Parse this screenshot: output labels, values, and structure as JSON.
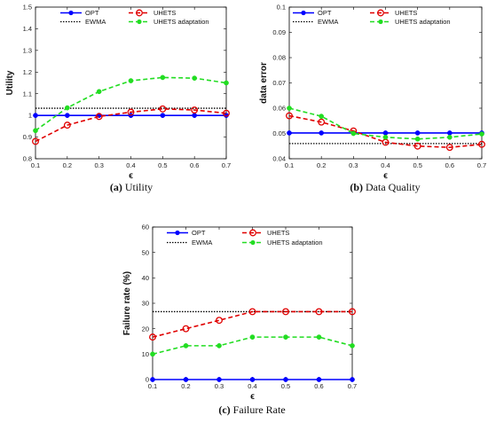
{
  "chart_data": [
    {
      "type": "line",
      "panel_label": "(a)",
      "caption": "Utility",
      "xlabel": "ϵ",
      "ylabel": "Utility",
      "x": [
        0.1,
        0.2,
        0.3,
        0.4,
        0.5,
        0.6,
        0.7
      ],
      "x_ticks": [
        "0.1",
        "0.2",
        "0.3",
        "0.4",
        "0.5",
        "0.6",
        "0.7"
      ],
      "xlim": [
        0.1,
        0.7
      ],
      "ylim": [
        0.8,
        1.5
      ],
      "y_ticks": [
        "0.8",
        "0.9",
        "1",
        "1.1",
        "1.2",
        "1.3",
        "1.4",
        "1.5"
      ],
      "y_tick_values": [
        0.8,
        0.9,
        1.0,
        1.1,
        1.2,
        1.3,
        1.4,
        1.5
      ],
      "grid": false,
      "legend_placement": "top",
      "series": [
        {
          "name": "OPT",
          "color": "#0000ff",
          "style": "solid",
          "marker": "dot",
          "values": [
            1.0,
            1.0,
            1.0,
            1.0,
            1.0,
            1.0,
            1.0
          ]
        },
        {
          "name": "EWMA",
          "color": "#000000",
          "style": "dotted",
          "marker": "none",
          "values": [
            1.033,
            1.033,
            1.033,
            1.033,
            1.033,
            1.033,
            1.033
          ]
        },
        {
          "name": "UHETS",
          "color": "#e00000",
          "style": "dashed",
          "marker": "circle",
          "values": [
            0.88,
            0.955,
            0.995,
            1.015,
            1.03,
            1.025,
            1.01
          ]
        },
        {
          "name": "UHETS adaptation",
          "color": "#22dd22",
          "style": "dashed",
          "marker": "dot",
          "values": [
            0.93,
            1.035,
            1.11,
            1.16,
            1.175,
            1.172,
            1.15
          ]
        }
      ]
    },
    {
      "type": "line",
      "panel_label": "(b)",
      "caption": "Data Quality",
      "xlabel": "ϵ",
      "ylabel": "data error",
      "x": [
        0.1,
        0.2,
        0.3,
        0.4,
        0.5,
        0.6,
        0.7
      ],
      "x_ticks": [
        "0.1",
        "0.2",
        "0.3",
        "0.4",
        "0.5",
        "0.6",
        "0.7"
      ],
      "xlim": [
        0.1,
        0.7
      ],
      "ylim": [
        0.04,
        0.1
      ],
      "y_ticks": [
        "0.04",
        "0.05",
        "0.06",
        "0.07",
        "0.08",
        "0.09",
        "0.1"
      ],
      "y_tick_values": [
        0.04,
        0.05,
        0.06,
        0.07,
        0.08,
        0.09,
        0.1
      ],
      "grid": false,
      "legend_placement": "top",
      "series": [
        {
          "name": "OPT",
          "color": "#0000ff",
          "style": "solid",
          "marker": "dot",
          "values": [
            0.0502,
            0.0502,
            0.0502,
            0.0502,
            0.0502,
            0.0502,
            0.0502
          ]
        },
        {
          "name": "EWMA",
          "color": "#000000",
          "style": "dotted",
          "marker": "none",
          "values": [
            0.046,
            0.046,
            0.046,
            0.046,
            0.046,
            0.046,
            0.046
          ]
        },
        {
          "name": "UHETS",
          "color": "#e00000",
          "style": "dashed",
          "marker": "circle",
          "values": [
            0.057,
            0.0545,
            0.051,
            0.0465,
            0.045,
            0.0445,
            0.0457
          ]
        },
        {
          "name": "UHETS adaptation",
          "color": "#22dd22",
          "style": "dashed",
          "marker": "dot",
          "values": [
            0.06,
            0.0568,
            0.05,
            0.0485,
            0.0478,
            0.0485,
            0.0498
          ]
        }
      ]
    },
    {
      "type": "line",
      "panel_label": "(c)",
      "caption": "Failure Rate",
      "xlabel": "ϵ",
      "ylabel": "Failure rate (%)",
      "x": [
        0.1,
        0.2,
        0.3,
        0.4,
        0.5,
        0.6,
        0.7
      ],
      "x_ticks": [
        "0.1",
        "0.2",
        "0.3",
        "0.4",
        "0.5",
        "0.6",
        "0.7"
      ],
      "xlim": [
        0.1,
        0.7
      ],
      "ylim": [
        0,
        60
      ],
      "y_ticks": [
        "0",
        "10",
        "20",
        "30",
        "40",
        "50",
        "60"
      ],
      "y_tick_values": [
        0,
        10,
        20,
        30,
        40,
        50,
        60
      ],
      "grid": false,
      "legend_placement": "top",
      "series": [
        {
          "name": "OPT",
          "color": "#0000ff",
          "style": "solid",
          "marker": "dot",
          "values": [
            0,
            0,
            0,
            0,
            0,
            0,
            0
          ]
        },
        {
          "name": "EWMA",
          "color": "#000000",
          "style": "dotted",
          "marker": "none",
          "values": [
            26.7,
            26.7,
            26.7,
            26.7,
            26.7,
            26.7,
            26.7
          ]
        },
        {
          "name": "UHETS",
          "color": "#e00000",
          "style": "dashed",
          "marker": "circle",
          "values": [
            16.7,
            20,
            23.3,
            26.7,
            26.7,
            26.7,
            26.7
          ]
        },
        {
          "name": "UHETS adaptation",
          "color": "#22dd22",
          "style": "dashed",
          "marker": "dot",
          "values": [
            10,
            13.3,
            13.3,
            16.7,
            16.7,
            16.7,
            13.3
          ]
        }
      ]
    }
  ]
}
